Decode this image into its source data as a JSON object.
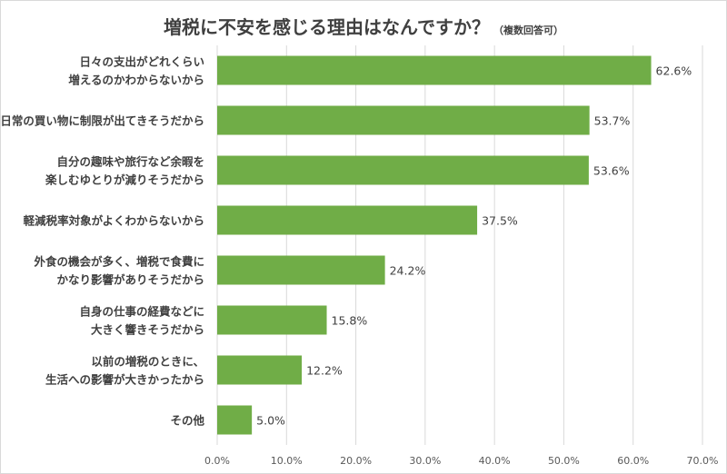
{
  "chart_data": {
    "type": "bar",
    "orientation": "horizontal",
    "title": "増税に不安を感じる理由はなんですか？",
    "title_note": "（複数回答可）",
    "categories": [
      [
        "日々の支出がどれくらい",
        "増えるのかわからないから"
      ],
      [
        "日常の買い物に制限が出てきそうだから"
      ],
      [
        "自分の趣味や旅行など余暇を",
        "楽しむゆとりが減りそうだから"
      ],
      [
        "軽減税率対象がよくわからないから"
      ],
      [
        "外食の機会が多く、増税で食費に",
        "かなり影響がありそうだから"
      ],
      [
        "自身の仕事の経費などに",
        "大きく響きそうだから"
      ],
      [
        "以前の増税のときに、",
        "生活への影響が大きかったから"
      ],
      [
        "その他"
      ]
    ],
    "values": [
      62.6,
      53.7,
      53.6,
      37.5,
      24.2,
      15.8,
      12.2,
      5.0
    ],
    "value_labels": [
      "62.6%",
      "53.7%",
      "53.6%",
      "37.5%",
      "24.2%",
      "15.8%",
      "12.2%",
      "5.0%"
    ],
    "xlim": [
      0,
      70
    ],
    "x_ticks": [
      "0.0%",
      "10.0%",
      "20.0%",
      "30.0%",
      "40.0%",
      "50.0%",
      "60.0%",
      "70.0%"
    ],
    "grid": "vertical",
    "bar_color": "#70ad47",
    "grid_color": "#d9d9d9"
  }
}
